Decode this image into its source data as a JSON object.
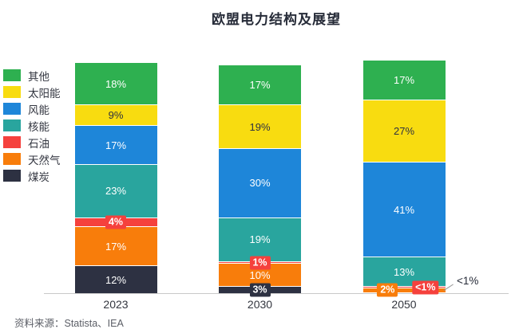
{
  "title": "欧盟电力结构及展望",
  "source": "资料来源：Statista、IEA",
  "chart_data": {
    "type": "bar",
    "stacked": true,
    "title": "欧盟电力结构及展望",
    "unit": "%",
    "grid": false,
    "legend_position": "left",
    "categories": [
      "2023",
      "2030",
      "2050"
    ],
    "series": [
      {
        "name": "其他",
        "color": "#2eb050",
        "label_color": "#ffffff",
        "values": [
          18,
          17,
          17
        ],
        "labels": [
          "18%",
          "17%",
          "17%"
        ],
        "label_styles": [
          "inline",
          "inline",
          "inline"
        ]
      },
      {
        "name": "太阳能",
        "color": "#f8dc10",
        "label_color": "#2d3142",
        "values": [
          9,
          19,
          27
        ],
        "labels": [
          "9%",
          "19%",
          "27%"
        ],
        "label_styles": [
          "inline",
          "inline",
          "inline"
        ]
      },
      {
        "name": "风能",
        "color": "#1e86d9",
        "label_color": "#ffffff",
        "values": [
          17,
          30,
          41
        ],
        "labels": [
          "17%",
          "30%",
          "41%"
        ],
        "label_styles": [
          "inline",
          "inline",
          "inline"
        ]
      },
      {
        "name": "核能",
        "color": "#29a59e",
        "label_color": "#ffffff",
        "values": [
          23,
          19,
          13
        ],
        "labels": [
          "23%",
          "19%",
          "13%"
        ],
        "label_styles": [
          "inline",
          "inline",
          "inline"
        ]
      },
      {
        "name": "石油",
        "color": "#f5413d",
        "label_color": "#ffffff",
        "values": [
          4,
          1,
          0.5
        ],
        "labels": [
          "4%",
          "1%",
          "<1%"
        ],
        "label_styles": [
          "chip",
          "chip",
          "chip-right"
        ]
      },
      {
        "name": "天然气",
        "color": "#f87d0b",
        "label_color": "#ffffff",
        "values": [
          17,
          10,
          2
        ],
        "labels": [
          "17%",
          "10%",
          "2%"
        ],
        "label_styles": [
          "inline",
          "inline",
          "chip-left"
        ]
      },
      {
        "name": "煤炭",
        "color": "#2d3142",
        "label_color": "#ffffff",
        "values": [
          12,
          3,
          0.5
        ],
        "labels": [
          "12%",
          "3%",
          "<1%"
        ],
        "label_styles": [
          "inline",
          "chip",
          "outside"
        ]
      }
    ],
    "outside_annotation": {
      "text": "<1%",
      "category": "2050",
      "series": "煤炭"
    }
  }
}
